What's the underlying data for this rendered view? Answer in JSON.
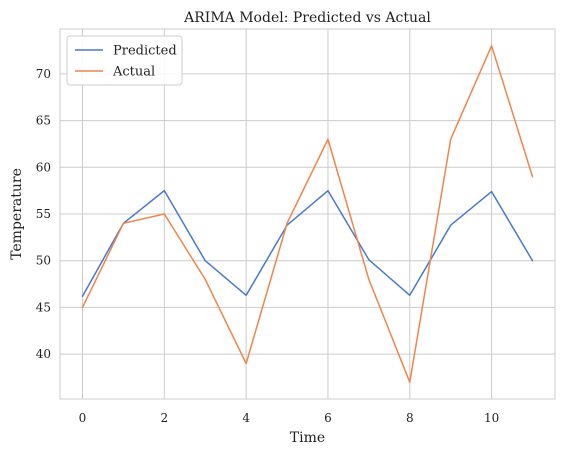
{
  "chart_data": {
    "type": "line",
    "title": "ARIMA Model: Predicted vs Actual",
    "xlabel": "Time",
    "ylabel": "Temperature",
    "x": [
      0,
      1,
      2,
      3,
      4,
      5,
      6,
      7,
      8,
      9,
      10,
      11
    ],
    "xlim": [
      -0.55,
      11.55
    ],
    "ylim": [
      35.2,
      74.8
    ],
    "xticks": [
      0,
      2,
      4,
      6,
      8,
      10
    ],
    "yticks": [
      40,
      45,
      50,
      55,
      60,
      65,
      70
    ],
    "grid": true,
    "legend_position": "top-left",
    "series": [
      {
        "name": "Predicted",
        "color": "#4878cf",
        "values": [
          46.2,
          54.0,
          57.5,
          50.0,
          46.3,
          53.8,
          57.5,
          50.1,
          46.3,
          53.8,
          57.4,
          50.0
        ]
      },
      {
        "name": "Actual",
        "color": "#ee854a",
        "values": [
          45.0,
          54.0,
          55.0,
          48.0,
          39.0,
          54.0,
          63.0,
          48.0,
          37.0,
          63.0,
          73.0,
          59.0
        ]
      }
    ]
  }
}
